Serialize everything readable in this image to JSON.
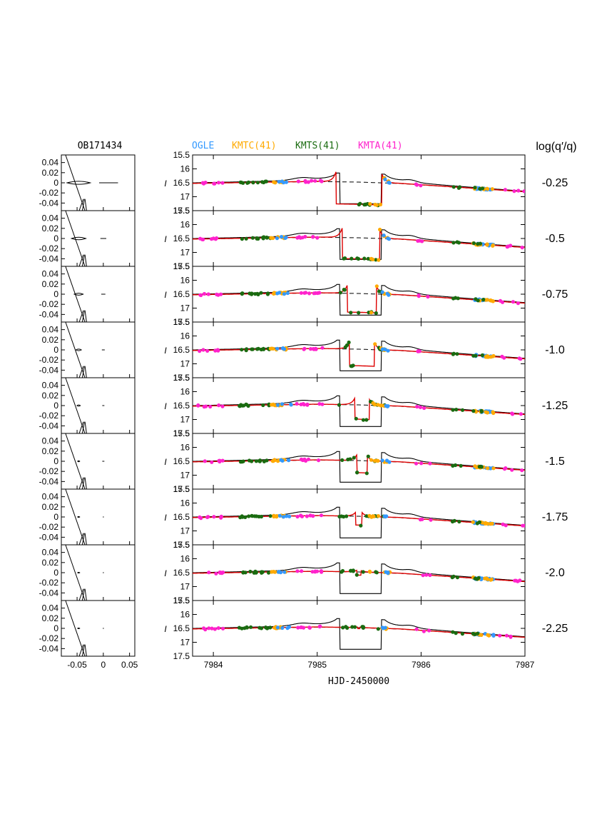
{
  "chart_data": {
    "type": "line",
    "event_label": "OB171434",
    "xlabel": "HJD-2450000",
    "ylabel": "I",
    "xlim": [
      7983.8,
      7987.0
    ],
    "ylim": [
      17.5,
      15.5
    ],
    "x_ticks": [
      7984,
      7985,
      7986,
      7987
    ],
    "x_tick_labels": [
      "7984",
      "7985",
      "7986",
      "7987"
    ],
    "y_tick_labels": [
      "15.5",
      "16",
      "16.5",
      "17",
      "17.5"
    ],
    "series_legend": [
      {
        "name": "OGLE",
        "color": "#3399ff"
      },
      {
        "name": "KMTC(41)",
        "color": "#ffaa00"
      },
      {
        "name": "KMTS(41)",
        "color": "#1a6b10"
      },
      {
        "name": "KMTA(41)",
        "color": "#ff22cc"
      }
    ],
    "right_axis_title": "log(q′/q)",
    "log_q_ratio_values": [
      "-0.25",
      "-0.5",
      "-0.75",
      "-1.0",
      "-1.25",
      "-1.5",
      "-1.75",
      "-2.0",
      "-2.25"
    ],
    "caustic_panel": {
      "x_ticks": [
        -0.05,
        0,
        0.05
      ],
      "x_tick_labels": [
        "-0.05",
        "0",
        "0.05"
      ],
      "y_tick_labels": [
        "0.04",
        "0.02",
        "0",
        "-0.02",
        "-0.04"
      ],
      "ylim": [
        -0.055,
        0.055
      ]
    },
    "single_lens_baseline": {
      "description": "slowly varying baseline magnification",
      "x": [
        7983.8,
        7984.3,
        7984.8,
        7985.0,
        7985.4,
        7985.8,
        7986.2,
        7986.6,
        7987.0
      ],
      "mag": [
        16.52,
        16.49,
        16.46,
        16.45,
        16.47,
        16.52,
        16.62,
        16.72,
        16.82
      ]
    },
    "colors": {
      "model_red": "#dd0000",
      "reference_black": "#000000"
    }
  }
}
